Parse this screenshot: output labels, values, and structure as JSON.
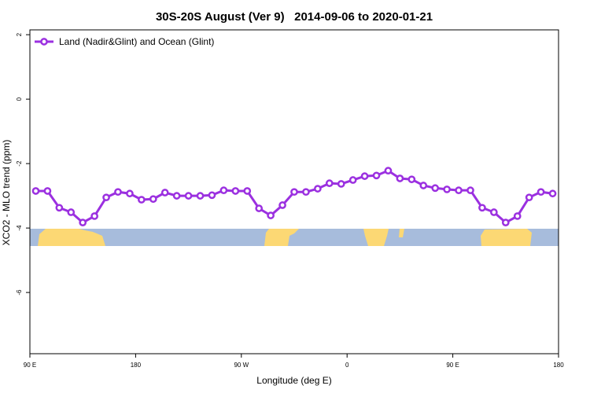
{
  "chart_data": {
    "type": "line",
    "title": "30S-20S August (Ver 9)   2014-09-06 to 2020-01-21",
    "xlabel": "Longitude (deg E)",
    "ylabel": "XCO2 - MLO trend (ppm)",
    "x": [
      95,
      105,
      115,
      125,
      135,
      145,
      155,
      165,
      175,
      185,
      195,
      205,
      215,
      225,
      235,
      245,
      255,
      265,
      275,
      285,
      295,
      305,
      315,
      325,
      335,
      345,
      355,
      365,
      375,
      385,
      395,
      405,
      415,
      425,
      435,
      445,
      455,
      465,
      475,
      485,
      495,
      505,
      515,
      525,
      535
    ],
    "series": [
      {
        "name": "Land (Nadir&Glint) and Ocean (Glint)",
        "color": "#9b30e0",
        "values": [
          -2.85,
          -2.85,
          -3.37,
          -3.51,
          -3.83,
          -3.63,
          -3.05,
          -2.88,
          -2.93,
          -3.12,
          -3.1,
          -2.9,
          -3.0,
          -3.0,
          -3.0,
          -2.98,
          -2.83,
          -2.85,
          -2.85,
          -3.39,
          -3.61,
          -3.29,
          -2.88,
          -2.88,
          -2.78,
          -2.61,
          -2.63,
          -2.51,
          -2.39,
          -2.37,
          -2.22,
          -2.46,
          -2.49,
          -2.68,
          -2.76,
          -2.8,
          -2.83,
          -2.83,
          -3.37,
          -3.51,
          -3.83,
          -3.63,
          -3.05,
          -2.88,
          -2.93
        ]
      }
    ],
    "xlim": [
      90,
      540
    ],
    "xticks": [
      {
        "value": 90,
        "label": "90 E"
      },
      180,
      {
        "value": 270,
        "label": "90 W"
      },
      {
        "value": 360,
        "label": "0"
      },
      {
        "value": 450,
        "label": "90 E"
      },
      {
        "value": 540,
        "label": "180"
      }
    ],
    "ylim": [
      -7.9,
      2.15
    ],
    "yticks": [
      2,
      0,
      -2,
      -4,
      -6
    ],
    "grid": false,
    "legend": "top-left"
  }
}
